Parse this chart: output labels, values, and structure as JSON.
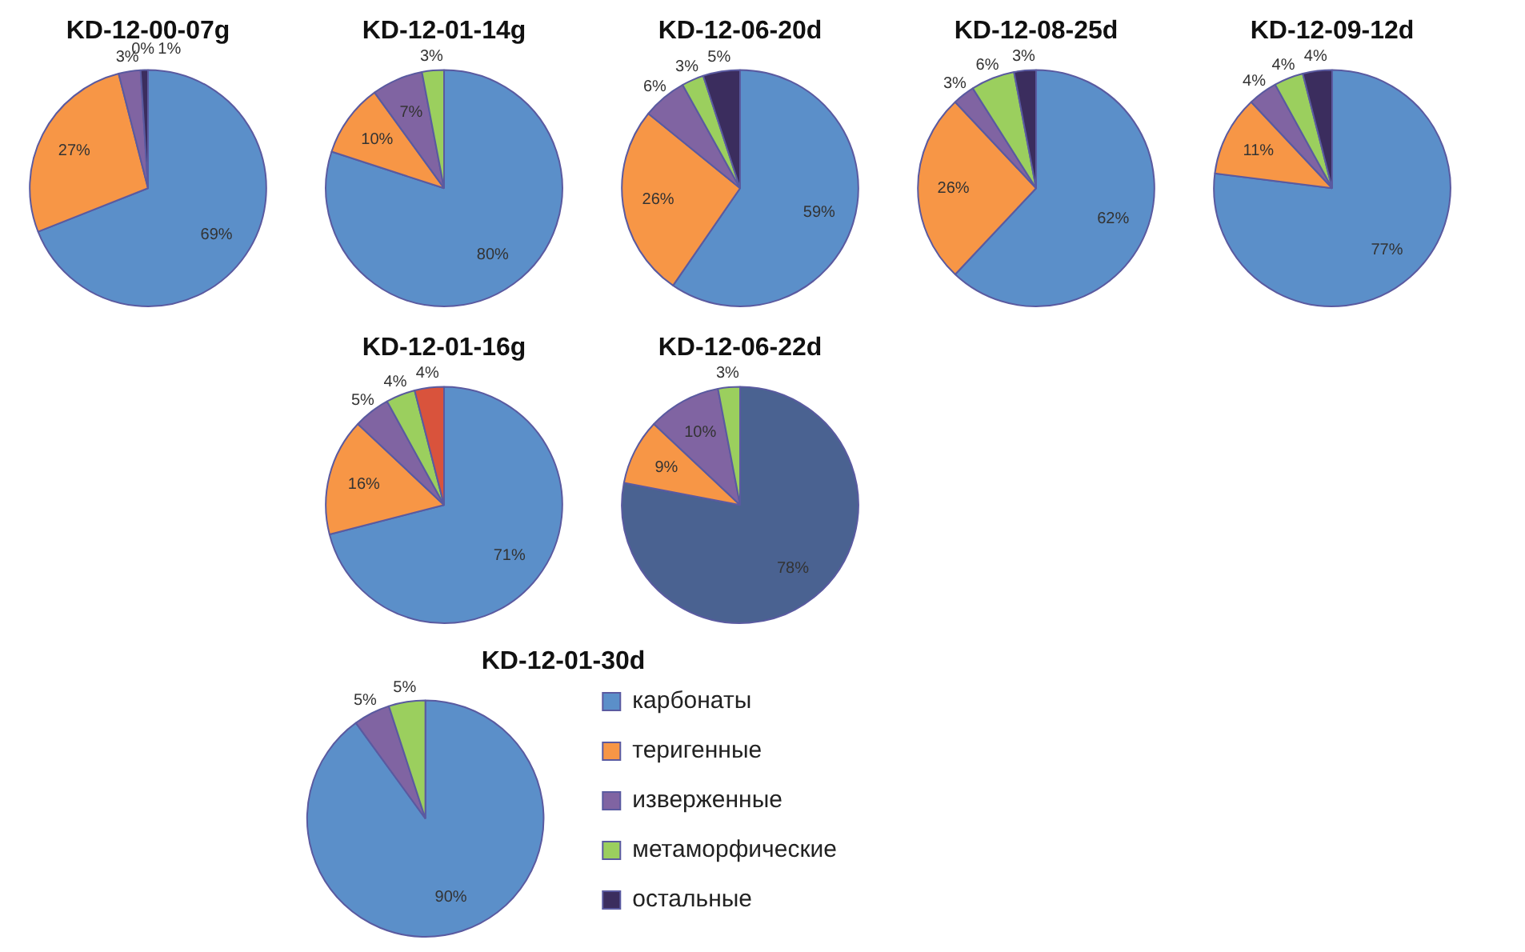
{
  "chart_data": [
    {
      "type": "pie",
      "title": "KD-12-00-07g",
      "categories": [
        null,
        null,
        null,
        null,
        null
      ],
      "values": [
        69,
        27,
        3,
        0,
        1
      ],
      "value_labels": [
        "69%",
        "27%",
        "3%",
        "0%",
        "1%"
      ],
      "colors": [
        "#5b8fc9",
        "#f79646",
        "#8064a2",
        "#9bcf5e",
        "#3b2d5e"
      ]
    },
    {
      "type": "pie",
      "title": "KD-12-01-14g",
      "categories": [
        null,
        null,
        null,
        null,
        null
      ],
      "values": [
        80,
        10,
        7,
        3,
        null
      ],
      "value_labels": [
        "80%",
        "10%",
        "7%",
        "3%",
        null
      ],
      "colors": [
        "#5b8fc9",
        "#f79646",
        "#8064a2",
        "#9bcf5e",
        "#3b2d5e"
      ]
    },
    {
      "type": "pie",
      "title": "KD-12-06-20d",
      "categories": [
        null,
        null,
        null,
        null,
        null
      ],
      "values": [
        59,
        26,
        6,
        3,
        5
      ],
      "value_labels": [
        "59%",
        "26%",
        "6%",
        "3%",
        "5%"
      ],
      "colors": [
        "#5b8fc9",
        "#f79646",
        "#8064a2",
        "#9bcf5e",
        "#3b2d5e"
      ]
    },
    {
      "type": "pie",
      "title": "KD-12-08-25d",
      "categories": [
        null,
        null,
        null,
        null,
        null
      ],
      "values": [
        62,
        26,
        3,
        6,
        3
      ],
      "value_labels": [
        "62%",
        "26%",
        "3%",
        "6%",
        "3%"
      ],
      "colors": [
        "#5b8fc9",
        "#f79646",
        "#8064a2",
        "#9bcf5e",
        "#3b2d5e"
      ]
    },
    {
      "type": "pie",
      "title": "KD-12-09-12d",
      "categories": [
        null,
        null,
        null,
        null,
        null
      ],
      "values": [
        77,
        11,
        4,
        4,
        4
      ],
      "value_labels": [
        "77%",
        "11%",
        "4%",
        "4%",
        "4%"
      ],
      "colors": [
        "#5b8fc9",
        "#f79646",
        "#8064a2",
        "#9bcf5e",
        "#3b2d5e"
      ]
    },
    {
      "type": "pie",
      "title": "KD-12-01-16g",
      "categories": [
        null,
        null,
        null,
        null,
        null
      ],
      "values": [
        71,
        16,
        5,
        4,
        4
      ],
      "value_labels": [
        "71%",
        "16%",
        "5%",
        "4%",
        "4%"
      ],
      "colors": [
        "#5b8fc9",
        "#f79646",
        "#8064a2",
        "#9bcf5e",
        "#d9533c"
      ]
    },
    {
      "type": "pie",
      "title": "KD-12-06-22d",
      "categories": [
        null,
        null,
        null,
        null,
        null
      ],
      "values": [
        78,
        9,
        10,
        3,
        null
      ],
      "value_labels": [
        "78%",
        "9%",
        "10%",
        "3%",
        null
      ],
      "colors": [
        "#4a6291",
        "#f79646",
        "#8064a2",
        "#9bcf5e",
        "#3b2d5e"
      ]
    },
    {
      "type": "pie",
      "title": "KD-12-01-30d",
      "categories": [
        "карбонаты",
        "теригенные",
        "изверженные",
        "метаморфические",
        "остальные"
      ],
      "values": [
        90,
        null,
        5,
        5,
        null
      ],
      "value_labels": [
        "90%",
        null,
        "5%",
        "5%",
        null
      ],
      "colors": [
        "#5b8fc9",
        "#f79646",
        "#8064a2",
        "#9bcf5e",
        "#3b2d5e"
      ],
      "legend": "right"
    }
  ]
}
